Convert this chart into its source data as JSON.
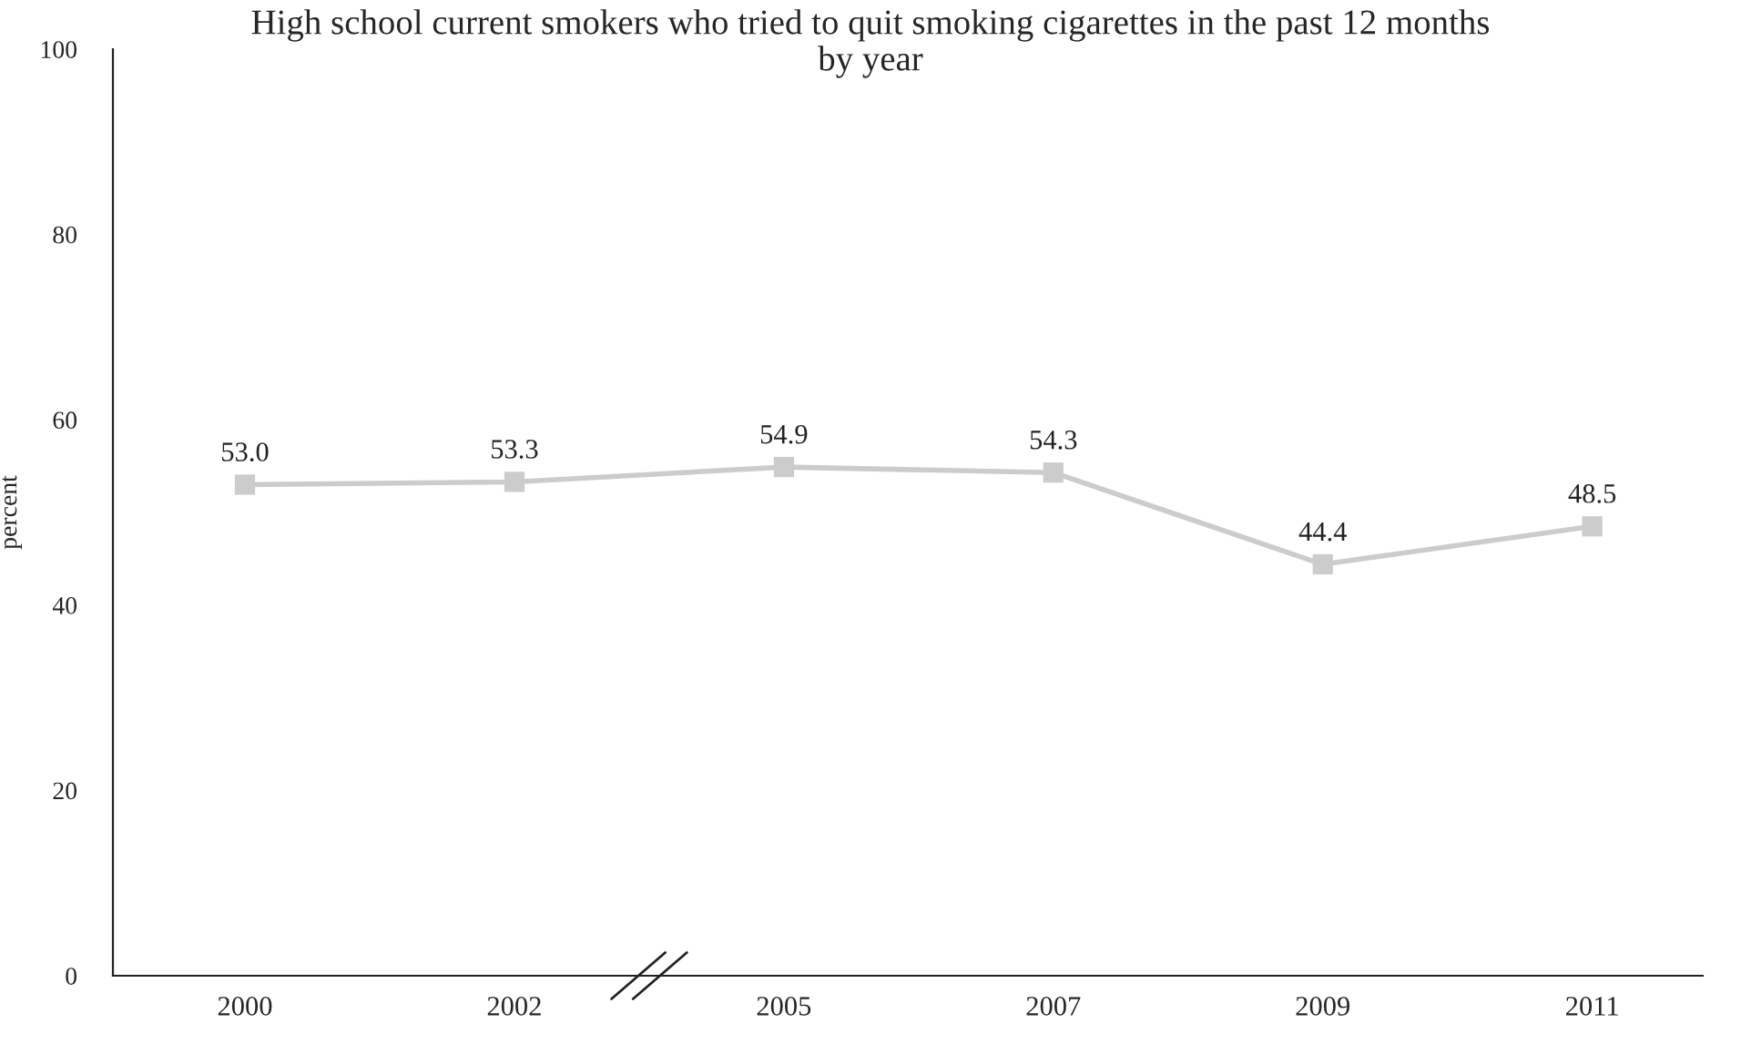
{
  "chart_data": {
    "type": "line",
    "title": "High school current smokers who tried to quit smoking cigarettes in the past 12 months",
    "subtitle": "by year",
    "ylabel": "percent",
    "categories": [
      "2000",
      "2002",
      "2005",
      "2007",
      "2009",
      "2011"
    ],
    "series": [
      {
        "color": "#cccccc",
        "values": [
          53.0,
          53.3,
          54.9,
          54.3,
          44.4,
          48.5
        ],
        "value_labels": [
          "53.0",
          "53.3",
          "54.9",
          "54.3",
          "44.4",
          "48.5"
        ]
      }
    ],
    "ylim": [
      0,
      100
    ],
    "yticks": [
      0,
      20,
      40,
      60,
      80,
      100
    ],
    "marker": "square",
    "line_style": "solid",
    "grid": false,
    "legend": false
  }
}
